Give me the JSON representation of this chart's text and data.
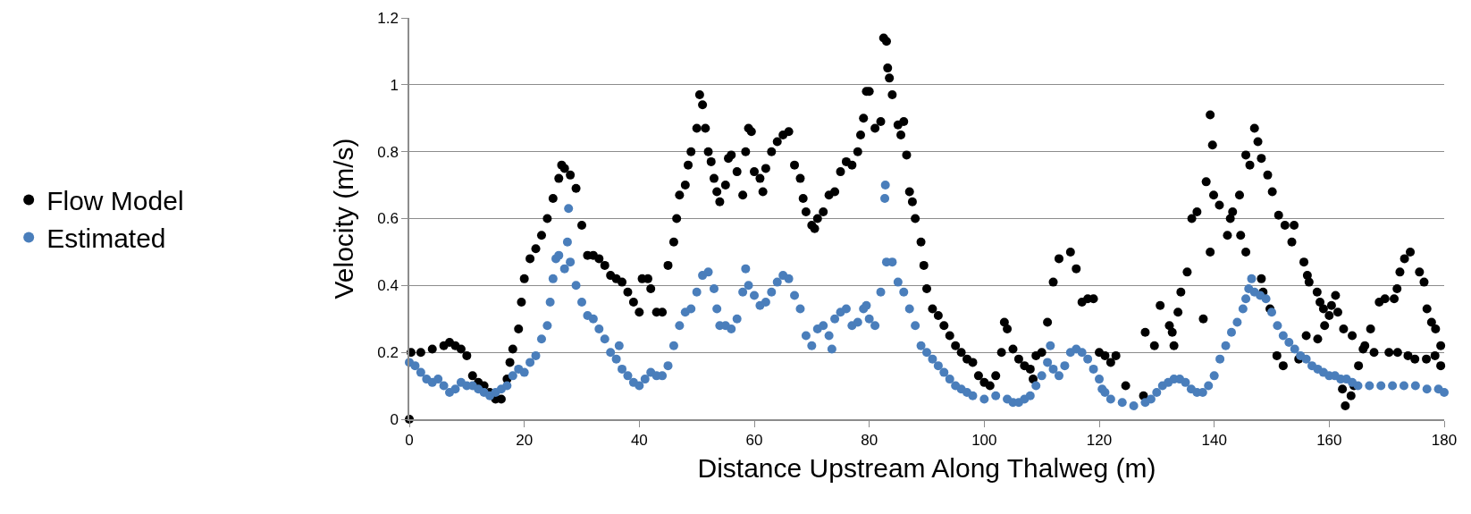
{
  "chart_data": {
    "type": "scatter",
    "xlabel": "Distance Upstream Along Thalweg (m)",
    "ylabel": "Velocity (m/s)",
    "xlim": [
      0,
      180
    ],
    "xticks": [
      0,
      20,
      40,
      60,
      80,
      100,
      120,
      140,
      160,
      180
    ],
    "ylim": [
      0,
      1.2
    ],
    "yticks": [
      0,
      0.2,
      0.4,
      0.6,
      0.8,
      1,
      1.2
    ],
    "grid": "y",
    "legend": "left",
    "marker": "circle",
    "series": [
      {
        "name": "Flow Model",
        "color": "#000000",
        "x": [
          0,
          0.3,
          2,
          4,
          6,
          7,
          8,
          9,
          10,
          11,
          12,
          13,
          14,
          15,
          16,
          17,
          17.5,
          18,
          19,
          19.5,
          20,
          21,
          22,
          23,
          24,
          25,
          26,
          26.5,
          27,
          28,
          29,
          30,
          31,
          32,
          33,
          34,
          35,
          36,
          37,
          38,
          39,
          40,
          40.5,
          41.5,
          42,
          43,
          44,
          45,
          46,
          46.5,
          47,
          48,
          48.5,
          49,
          50,
          50.5,
          51,
          51.5,
          52,
          52.5,
          53,
          53.5,
          54,
          55,
          55.5,
          56,
          57,
          58,
          58.5,
          59,
          59.5,
          60,
          61,
          61.5,
          62,
          63,
          64,
          65,
          66,
          67,
          68,
          68.5,
          69,
          70,
          70.5,
          71,
          72,
          73,
          74,
          75,
          76,
          77,
          78,
          78.5,
          79,
          79.5,
          80,
          81,
          82,
          82.5,
          83,
          83.2,
          83.5,
          84,
          85,
          85.5,
          86,
          86.5,
          87,
          87.5,
          88,
          89,
          89.5,
          90,
          91,
          92,
          93,
          94,
          95,
          96,
          97,
          98,
          99,
          100,
          101,
          102,
          103,
          103.5,
          104,
          105,
          106,
          107,
          108,
          108.5,
          109,
          110,
          111,
          112,
          113,
          115,
          116,
          117,
          118,
          119,
          120,
          121,
          122,
          122.9,
          124.6,
          127.7,
          128,
          129.6,
          130.6,
          132.2,
          132.7,
          133,
          133.7,
          134.2,
          135.3,
          136.1,
          137,
          138.1,
          138.6,
          139.3,
          139.3,
          139.7,
          139.9,
          140.9,
          142.3,
          142.8,
          143.2,
          144.4,
          144.6,
          145.5,
          145.5,
          146.2,
          147,
          147.6,
          148.2,
          148.2,
          148.5,
          149.3,
          149.7,
          150.1,
          150.9,
          151.2,
          152,
          152.3,
          153.5,
          153.9,
          154.7,
          155.6,
          156,
          156.2,
          156.5,
          157.9,
          158,
          158.4,
          159,
          159.2,
          160,
          160.4,
          161.1,
          161.5,
          162.3,
          162.5,
          162.8,
          163.8,
          164,
          164.3,
          165.1,
          165.9,
          166.2,
          167.2,
          167.8,
          168.7,
          169.7,
          170.4,
          171.3,
          171.8,
          171.9,
          172.3,
          173.1,
          173.7,
          174.1,
          174.9,
          175.7,
          176.5,
          176.9,
          177,
          177.8,
          178.4,
          178.5,
          179.4,
          179.4
        ],
        "values": [
          0,
          0.2,
          0.2,
          0.21,
          0.22,
          0.23,
          0.22,
          0.21,
          0.19,
          0.13,
          0.11,
          0.1,
          0.08,
          0.06,
          0.06,
          0.12,
          0.17,
          0.21,
          0.27,
          0.35,
          0.42,
          0.48,
          0.51,
          0.55,
          0.6,
          0.66,
          0.72,
          0.76,
          0.75,
          0.73,
          0.69,
          0.58,
          0.49,
          0.49,
          0.48,
          0.46,
          0.43,
          0.42,
          0.41,
          0.38,
          0.35,
          0.32,
          0.42,
          0.42,
          0.39,
          0.32,
          0.32,
          0.46,
          0.53,
          0.6,
          0.67,
          0.7,
          0.76,
          0.8,
          0.87,
          0.97,
          0.94,
          0.87,
          0.8,
          0.77,
          0.72,
          0.68,
          0.65,
          0.7,
          0.78,
          0.79,
          0.74,
          0.67,
          0.8,
          0.87,
          0.86,
          0.74,
          0.72,
          0.68,
          0.75,
          0.8,
          0.83,
          0.85,
          0.86,
          0.76,
          0.72,
          0.66,
          0.62,
          0.58,
          0.57,
          0.6,
          0.62,
          0.67,
          0.68,
          0.74,
          0.77,
          0.76,
          0.8,
          0.85,
          0.9,
          0.98,
          0.98,
          0.87,
          0.89,
          1.14,
          1.13,
          1.05,
          1.02,
          0.97,
          0.88,
          0.85,
          0.89,
          0.79,
          0.68,
          0.65,
          0.6,
          0.53,
          0.46,
          0.39,
          0.33,
          0.31,
          0.28,
          0.25,
          0.22,
          0.2,
          0.18,
          0.17,
          0.13,
          0.11,
          0.1,
          0.13,
          0.2,
          0.29,
          0.27,
          0.21,
          0.18,
          0.16,
          0.15,
          0.12,
          0.19,
          0.2,
          0.29,
          0.41,
          0.48,
          0.5,
          0.45,
          0.35,
          0.36,
          0.36,
          0.2,
          0.19,
          0.17,
          0.19,
          0.1,
          0.07,
          0.26,
          0.22,
          0.34,
          0.28,
          0.26,
          0.22,
          0.32,
          0.38,
          0.44,
          0.6,
          0.62,
          0.3,
          0.71,
          0.91,
          0.5,
          0.82,
          0.67,
          0.64,
          0.55,
          0.6,
          0.62,
          0.67,
          0.55,
          0.5,
          0.79,
          0.76,
          0.87,
          0.83,
          0.78,
          0.42,
          0.38,
          0.73,
          0.33,
          0.68,
          0.19,
          0.61,
          0.16,
          0.58,
          0.53,
          0.58,
          0.18,
          0.47,
          0.25,
          0.43,
          0.41,
          0.38,
          0.24,
          0.35,
          0.33,
          0.28,
          0.31,
          0.34,
          0.37,
          0.32,
          0.09,
          0.27,
          0.04,
          0.07,
          0.25,
          0.1,
          0.16,
          0.21,
          0.22,
          0.27,
          0.2,
          0.35,
          0.36,
          0.2,
          0.36,
          0.39,
          0.2,
          0.44,
          0.48,
          0.19,
          0.5,
          0.18,
          0.44,
          0.41,
          0.18,
          0.33,
          0.29,
          0.19,
          0.27,
          0.16,
          0.22
        ]
      },
      {
        "name": "Estimated",
        "color": "#4a7ebb",
        "x": [
          0,
          1,
          2,
          3,
          4,
          5,
          6,
          7,
          8,
          9,
          10,
          11,
          12,
          13,
          14,
          15,
          16,
          17,
          18,
          19,
          20,
          21,
          22,
          23,
          24,
          24.5,
          25,
          25.5,
          26,
          27,
          27.5,
          27.7,
          28,
          29,
          30,
          31,
          32,
          33,
          34,
          35,
          36,
          36.5,
          37,
          38,
          39,
          40,
          41,
          42,
          43,
          44,
          45,
          46,
          47,
          48,
          49,
          50,
          51,
          52,
          53,
          53.5,
          54,
          55,
          56,
          57,
          58,
          58.5,
          59,
          60,
          61,
          62,
          63,
          64,
          65,
          66,
          67,
          68,
          69,
          70,
          71,
          72,
          73,
          73.5,
          74,
          75,
          76,
          77,
          78,
          79,
          79.5,
          80,
          81,
          82,
          82.7,
          82.8,
          83,
          84,
          85,
          86,
          87,
          88,
          89,
          90,
          91,
          92,
          93,
          94,
          95,
          96,
          97,
          98,
          100,
          102,
          104,
          105,
          106,
          107,
          108,
          109,
          110,
          111,
          111.5,
          112,
          113,
          114,
          115,
          116,
          117,
          118,
          119,
          120,
          120.5,
          121,
          122,
          124,
          126,
          128,
          129,
          130,
          131,
          132,
          133,
          134,
          135,
          136,
          137,
          138,
          139,
          140,
          141,
          142,
          143,
          144,
          145,
          145.5,
          146,
          146.5,
          147,
          148,
          149,
          150,
          151,
          152,
          153,
          154,
          155,
          156,
          157,
          158,
          159,
          160,
          161,
          162,
          163,
          164,
          165,
          167,
          169,
          171,
          173,
          175,
          177,
          179,
          180
        ],
        "values": [
          0.17,
          0.16,
          0.14,
          0.12,
          0.11,
          0.12,
          0.1,
          0.08,
          0.09,
          0.11,
          0.1,
          0.1,
          0.09,
          0.08,
          0.07,
          0.08,
          0.09,
          0.1,
          0.13,
          0.15,
          0.14,
          0.17,
          0.19,
          0.24,
          0.28,
          0.35,
          0.42,
          0.48,
          0.49,
          0.45,
          0.53,
          0.63,
          0.47,
          0.4,
          0.35,
          0.31,
          0.3,
          0.27,
          0.24,
          0.2,
          0.18,
          0.22,
          0.15,
          0.13,
          0.11,
          0.1,
          0.12,
          0.14,
          0.13,
          0.13,
          0.16,
          0.22,
          0.28,
          0.32,
          0.33,
          0.38,
          0.43,
          0.44,
          0.39,
          0.33,
          0.28,
          0.28,
          0.27,
          0.3,
          0.38,
          0.45,
          0.4,
          0.37,
          0.34,
          0.35,
          0.38,
          0.41,
          0.43,
          0.42,
          0.37,
          0.33,
          0.25,
          0.22,
          0.27,
          0.28,
          0.25,
          0.21,
          0.3,
          0.32,
          0.33,
          0.28,
          0.29,
          0.33,
          0.34,
          0.3,
          0.28,
          0.38,
          0.66,
          0.7,
          0.47,
          0.47,
          0.41,
          0.38,
          0.33,
          0.28,
          0.22,
          0.2,
          0.18,
          0.16,
          0.14,
          0.12,
          0.1,
          0.09,
          0.08,
          0.07,
          0.06,
          0.07,
          0.06,
          0.05,
          0.05,
          0.06,
          0.07,
          0.1,
          0.13,
          0.17,
          0.22,
          0.15,
          0.13,
          0.16,
          0.2,
          0.21,
          0.2,
          0.18,
          0.15,
          0.12,
          0.09,
          0.08,
          0.06,
          0.05,
          0.04,
          0.05,
          0.06,
          0.08,
          0.1,
          0.11,
          0.12,
          0.12,
          0.11,
          0.09,
          0.08,
          0.08,
          0.1,
          0.13,
          0.18,
          0.22,
          0.26,
          0.29,
          0.33,
          0.36,
          0.39,
          0.42,
          0.38,
          0.37,
          0.36,
          0.32,
          0.28,
          0.25,
          0.23,
          0.21,
          0.19,
          0.18,
          0.16,
          0.15,
          0.14,
          0.13,
          0.13,
          0.12,
          0.12,
          0.11,
          0.1,
          0.1,
          0.1,
          0.1,
          0.1,
          0.1,
          0.09,
          0.09,
          0.08
        ]
      }
    ]
  }
}
